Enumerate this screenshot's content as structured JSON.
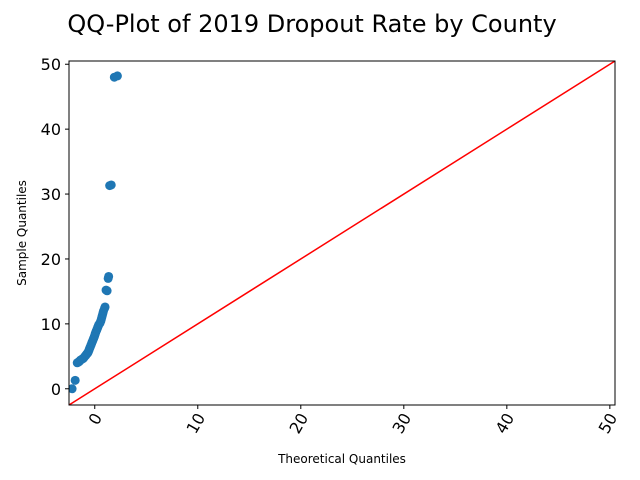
{
  "chart_data": {
    "type": "scatter",
    "title": "QQ-Plot of 2019 Dropout Rate by County",
    "xlabel": "Theoretical Quantiles",
    "ylabel": "Sample Quantiles",
    "xlim": [
      -2.5,
      50.5
    ],
    "ylim": [
      -2.5,
      50.5
    ],
    "xticks": [
      0,
      10,
      20,
      30,
      40,
      50
    ],
    "xtick_labels": [
      "0",
      "10",
      "20",
      "30",
      "40",
      "50"
    ],
    "xtick_rotation": -60,
    "yticks": [
      0,
      10,
      20,
      30,
      40,
      50
    ],
    "ytick_labels": [
      "0",
      "10",
      "20",
      "30",
      "40",
      "50"
    ],
    "grid": false,
    "reference_line": {
      "slope": 1,
      "intercept": 0,
      "color": "#ff0000"
    },
    "marker_color": "#1f77b4",
    "points": [
      [
        -2.2,
        0.0
      ],
      [
        -1.9,
        1.3
      ],
      [
        -1.7,
        4.0
      ],
      [
        -1.6,
        4.1
      ],
      [
        -1.5,
        4.2
      ],
      [
        -1.4,
        4.4
      ],
      [
        -1.3,
        4.5
      ],
      [
        -1.2,
        4.6
      ],
      [
        -1.1,
        4.7
      ],
      [
        -1.0,
        4.9
      ],
      [
        -0.9,
        5.1
      ],
      [
        -0.85,
        5.2
      ],
      [
        -0.8,
        5.3
      ],
      [
        -0.75,
        5.4
      ],
      [
        -0.7,
        5.5
      ],
      [
        -0.65,
        5.6
      ],
      [
        -0.6,
        5.8
      ],
      [
        -0.55,
        6.0
      ],
      [
        -0.5,
        6.2
      ],
      [
        -0.45,
        6.4
      ],
      [
        -0.4,
        6.6
      ],
      [
        -0.35,
        6.8
      ],
      [
        -0.3,
        7.0
      ],
      [
        -0.25,
        7.2
      ],
      [
        -0.2,
        7.4
      ],
      [
        -0.15,
        7.6
      ],
      [
        -0.1,
        7.8
      ],
      [
        -0.05,
        8.0
      ],
      [
        0.0,
        8.2
      ],
      [
        0.05,
        8.5
      ],
      [
        0.1,
        8.7
      ],
      [
        0.15,
        8.9
      ],
      [
        0.2,
        9.1
      ],
      [
        0.25,
        9.3
      ],
      [
        0.3,
        9.5
      ],
      [
        0.35,
        9.7
      ],
      [
        0.4,
        9.9
      ],
      [
        0.5,
        10.1
      ],
      [
        0.55,
        10.3
      ],
      [
        0.6,
        10.5
      ],
      [
        0.65,
        10.8
      ],
      [
        0.7,
        11.1
      ],
      [
        0.75,
        11.4
      ],
      [
        0.8,
        11.7
      ],
      [
        0.85,
        12.0
      ],
      [
        0.95,
        12.4
      ],
      [
        1.0,
        12.6
      ],
      [
        1.1,
        15.2
      ],
      [
        1.2,
        15.1
      ],
      [
        1.3,
        17.0
      ],
      [
        1.35,
        17.3
      ],
      [
        1.45,
        31.3
      ],
      [
        1.6,
        31.4
      ],
      [
        1.9,
        48.0
      ],
      [
        2.2,
        48.2
      ]
    ]
  }
}
